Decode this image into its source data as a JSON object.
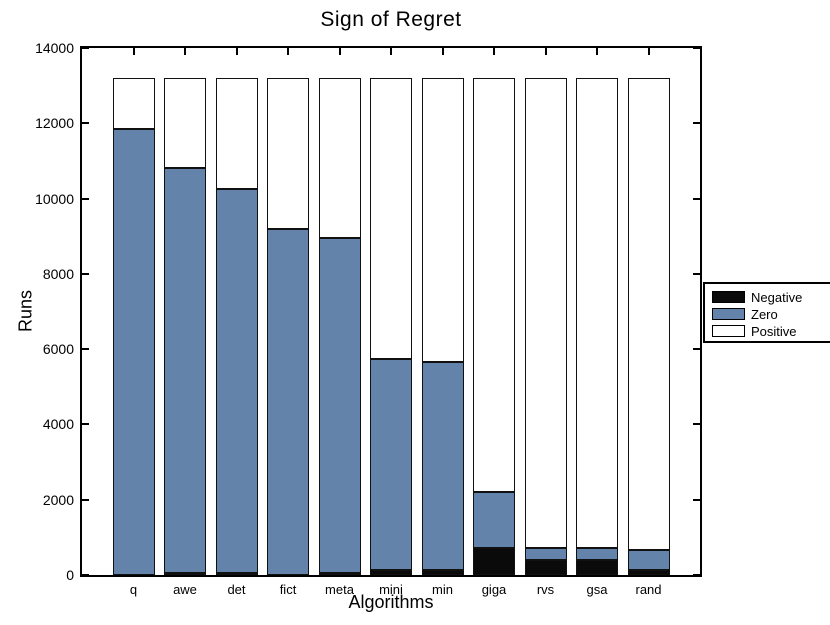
{
  "title": "Sign of Regret",
  "axes": {
    "ylabel": "Runs",
    "xlabel": "Algorithms"
  },
  "colors": {
    "negative": "#0a0a0a",
    "zero": "#6383AB",
    "positive": "#ffffff",
    "edge": "#111111"
  },
  "legend": {
    "position": "right-outside",
    "items": [
      {
        "label": "Negative",
        "color": "#0a0a0a"
      },
      {
        "label": "Zero",
        "color": "#6383AB"
      },
      {
        "label": "Positive",
        "color": "#ffffff"
      }
    ]
  },
  "chart_data": {
    "type": "bar",
    "stacked": true,
    "title": "Sign of Regret",
    "xlabel": "Algorithms",
    "ylabel": "Runs",
    "categories": [
      "q",
      "awe",
      "det",
      "fict",
      "meta",
      "mini",
      "min",
      "giga",
      "rvs",
      "gsa",
      "rand"
    ],
    "series": [
      {
        "name": "Negative",
        "color": "#0a0a0a",
        "values": [
          0,
          60,
          60,
          0,
          60,
          120,
          140,
          730,
          400,
          400,
          120
        ]
      },
      {
        "name": "Zero",
        "color": "#6383AB",
        "values": [
          11850,
          10740,
          10190,
          9200,
          8890,
          5630,
          5510,
          1470,
          330,
          310,
          550
        ]
      },
      {
        "name": "Positive",
        "color": "#ffffff",
        "values": [
          1350,
          2400,
          2950,
          4000,
          4250,
          7450,
          7550,
          11000,
          12470,
          12490,
          12530
        ]
      }
    ],
    "bar_total": 13200,
    "ylim": [
      0,
      14000
    ],
    "yticks": [
      0,
      2000,
      4000,
      6000,
      8000,
      10000,
      12000,
      14000
    ],
    "ytick_labels": [
      "0",
      "2000",
      "4000",
      "6000",
      "8000",
      "10000",
      "12000",
      "14000"
    ],
    "legend_position": "right-outside",
    "grid": false
  }
}
